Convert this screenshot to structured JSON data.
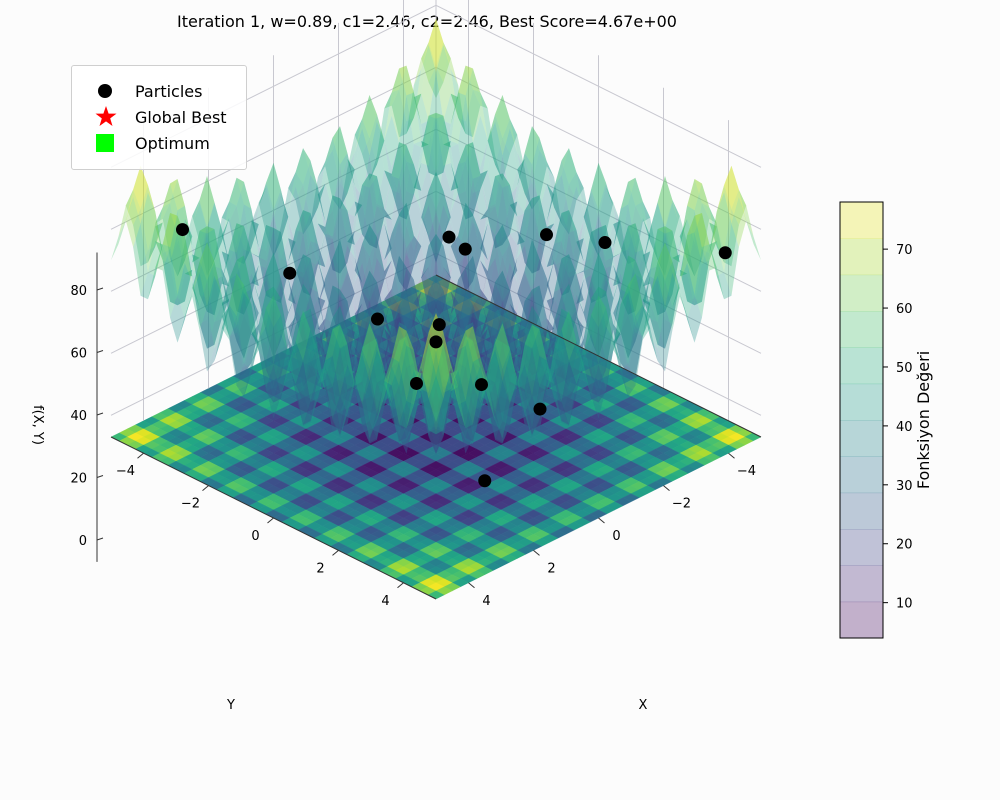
{
  "title": "Iteration 1, w=0.89, c1=2.46, c2=2.46, Best Score=4.67e+00",
  "legend": {
    "particles": "Particles",
    "global_best": "Global Best",
    "optimum": "Optimum"
  },
  "colors": {
    "particles": "#000000",
    "global_best": "#ff0000",
    "optimum": "#00ff00",
    "colormap": "viridis"
  },
  "chart_data": {
    "type": "surface3d",
    "function": "rastrigin",
    "title": "Iteration 1, w=0.89, c1=2.46, c2=2.46, Best Score=4.67e+00",
    "xlabel": "X",
    "ylabel": "Y",
    "zlabel": "f(X, Y)",
    "xlim": [
      -5,
      5
    ],
    "ylim": [
      -5,
      5
    ],
    "zlim": [
      0,
      90
    ],
    "x_ticks": [
      "−4",
      "−2",
      "0",
      "2",
      "4"
    ],
    "y_ticks": [
      "−4",
      "−2",
      "0",
      "2",
      "4"
    ],
    "z_ticks": [
      "0",
      "20",
      "40",
      "60",
      "80"
    ],
    "x_tick_values": [
      -4,
      -2,
      0,
      2,
      4
    ],
    "y_tick_values": [
      -4,
      -2,
      0,
      2,
      4
    ],
    "z_tick_values": [
      0,
      20,
      40,
      60,
      80
    ],
    "legend_position": "upper-left",
    "colorbar": {
      "label": "Fonksiyon Değeri",
      "ticks": [
        "10",
        "20",
        "30",
        "40",
        "50",
        "60",
        "70"
      ],
      "tick_values": [
        10,
        20,
        30,
        40,
        50,
        60,
        70
      ],
      "range": [
        4,
        78
      ]
    },
    "best_score": 4.67,
    "iteration": 1,
    "w": 0.89,
    "c1": 2.46,
    "c2": 2.46,
    "particles": [
      {
        "x": -4.3,
        "y": 4.6,
        "z": 54
      },
      {
        "x": 4.1,
        "y": -3.7,
        "z": 62
      },
      {
        "x": -4.2,
        "y": 1.0,
        "z": 39
      },
      {
        "x": 0.6,
        "y": 3.8,
        "z": 25
      },
      {
        "x": 2.8,
        "y": 4.3,
        "z": 16
      },
      {
        "x": -2.3,
        "y": 1.1,
        "z": 52
      },
      {
        "x": 0.5,
        "y": 0.6,
        "z": 35
      },
      {
        "x": -3.5,
        "y": -3.1,
        "z": 23
      },
      {
        "x": -2.9,
        "y": -2.0,
        "z": 28
      },
      {
        "x": 1.5,
        "y": -3.0,
        "z": 38
      },
      {
        "x": -1.5,
        "y": -1.5,
        "z": 8
      },
      {
        "x": 0.8,
        "y": -1.0,
        "z": 30
      },
      {
        "x": -0.5,
        "y": 0.9,
        "z": 12
      },
      {
        "x": 1.9,
        "y": 1.3,
        "z": 27
      }
    ],
    "global_best": null,
    "optimum": {
      "x": 0,
      "y": 0,
      "z": 0
    }
  }
}
